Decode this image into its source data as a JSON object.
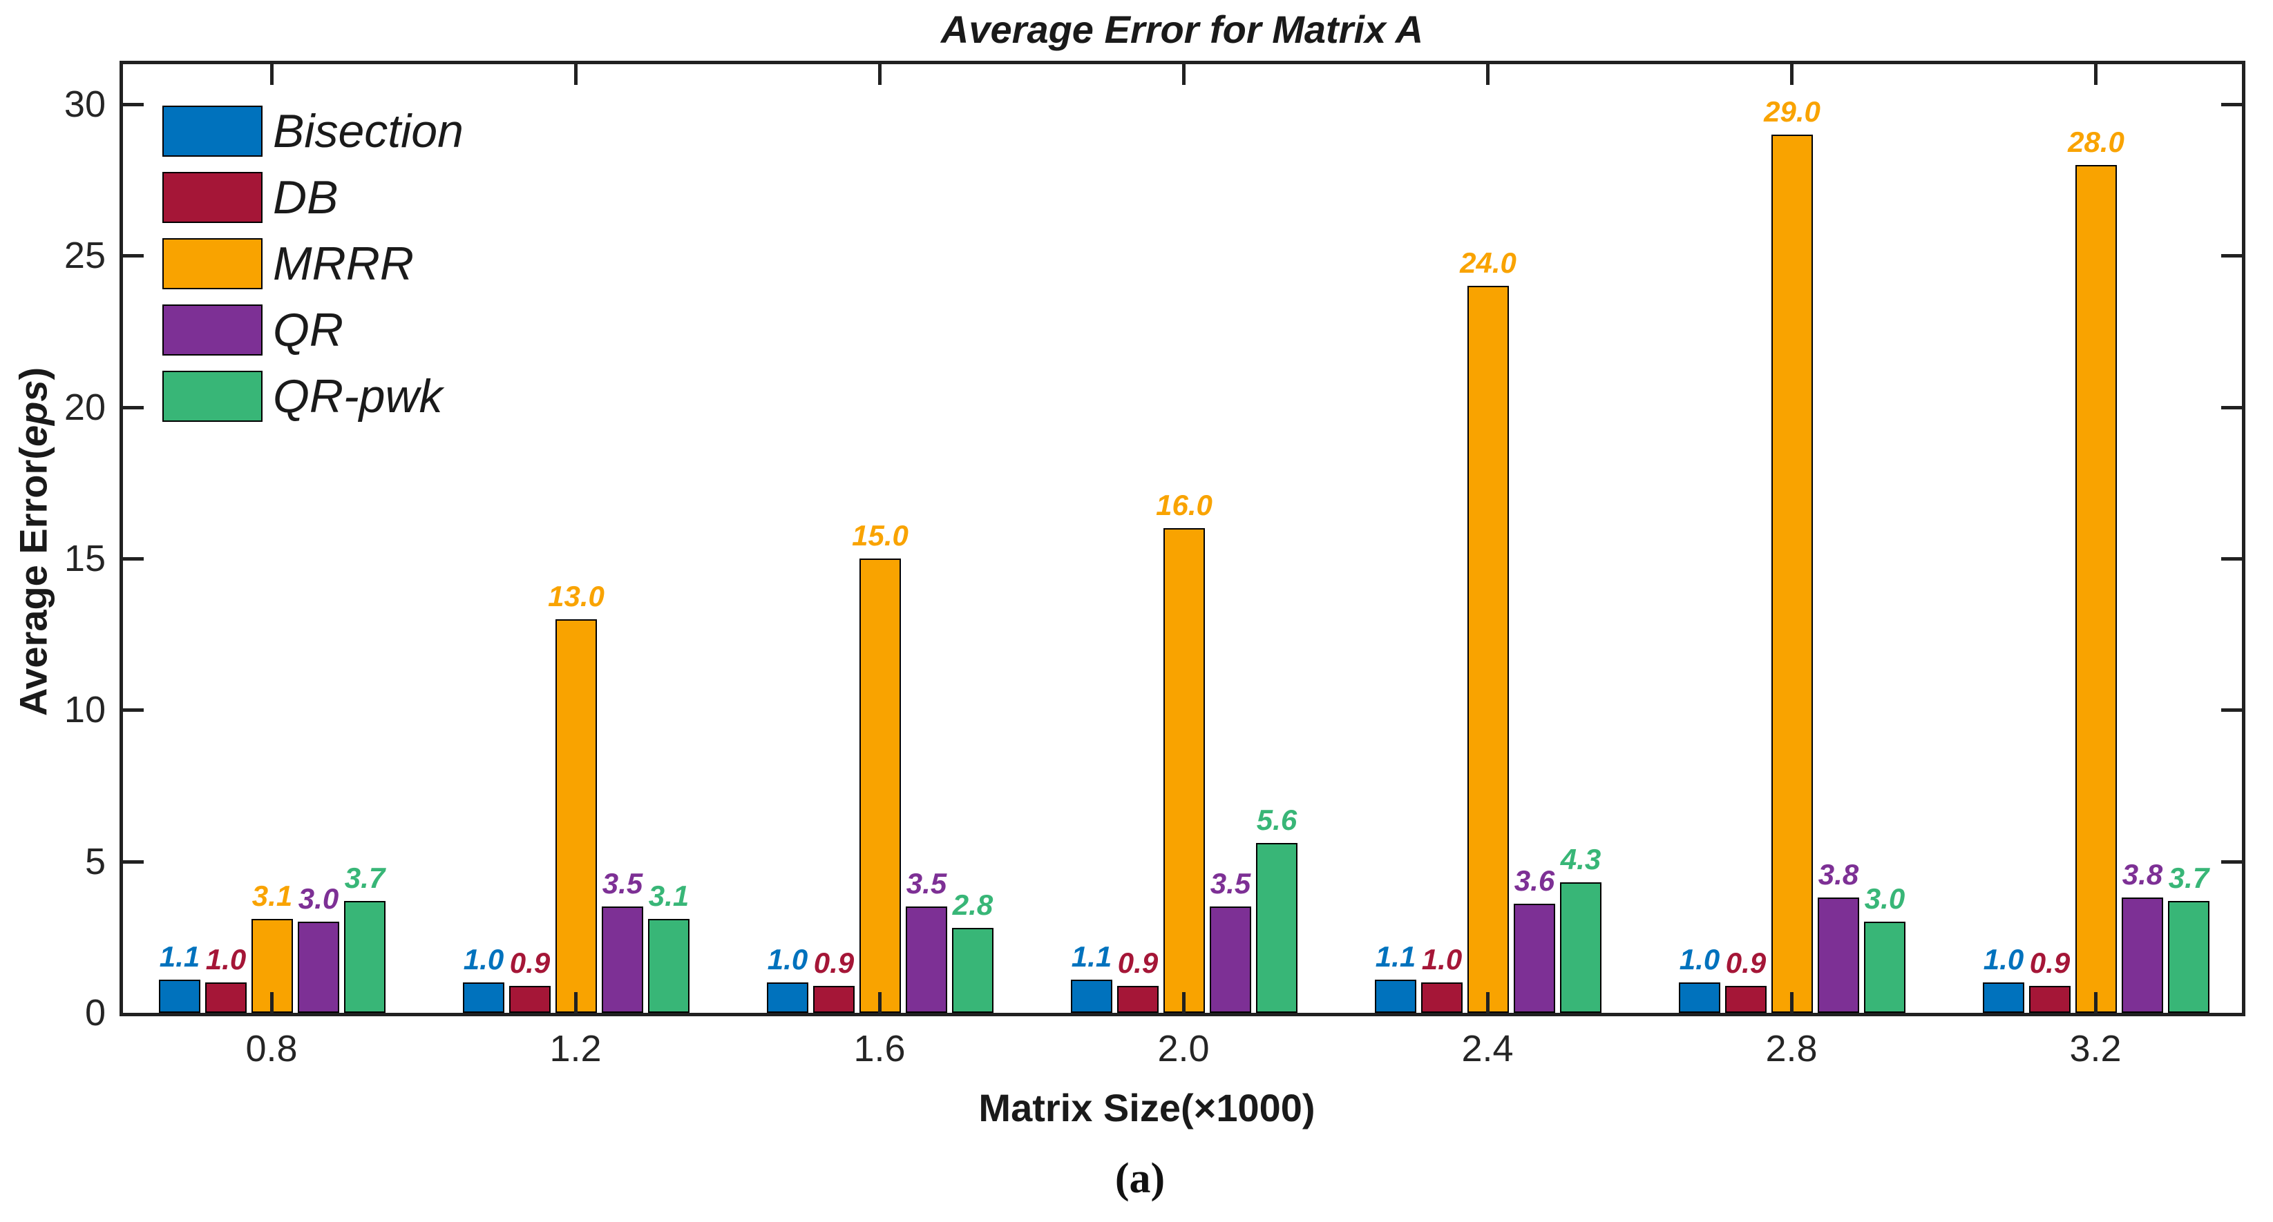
{
  "chart_data": {
    "type": "bar",
    "title": "Average Error for Matrix A",
    "xlabel": "Matrix Size(×1000)",
    "ylabel": "Average Error(eps)",
    "ylabel_parts": {
      "prefix": "Average Error(",
      "italic": "eps",
      "suffix": ")"
    },
    "caption": "(a)",
    "categories": [
      "0.8",
      "1.2",
      "1.6",
      "2.0",
      "2.4",
      "2.8",
      "3.2"
    ],
    "y_ticks": [
      0,
      5,
      10,
      15,
      20,
      25,
      30
    ],
    "ylim": [
      0,
      31.3
    ],
    "grid": false,
    "legend_position": "top-left",
    "frame": "box with inward ticks",
    "axis_color": "#212121",
    "series": [
      {
        "name": "Bisection",
        "color": "#0072BD",
        "values": [
          1.1,
          1.0,
          1.0,
          1.1,
          1.1,
          1.0,
          1.0
        ]
      },
      {
        "name": "DB",
        "color": "#A51637",
        "values": [
          1.0,
          0.9,
          0.9,
          0.9,
          1.0,
          0.9,
          0.9
        ]
      },
      {
        "name": "MRRR",
        "color": "#F9A300",
        "values": [
          3.1,
          13.0,
          15.0,
          16.0,
          24.0,
          29.0,
          28.0
        ]
      },
      {
        "name": "QR",
        "color": "#7D3095",
        "values": [
          3.0,
          3.5,
          3.5,
          3.5,
          3.6,
          3.8,
          3.8
        ]
      },
      {
        "name": "QR-pwk",
        "color": "#38B677",
        "values": [
          3.7,
          3.1,
          2.8,
          5.6,
          4.3,
          3.0,
          3.7
        ]
      }
    ]
  }
}
